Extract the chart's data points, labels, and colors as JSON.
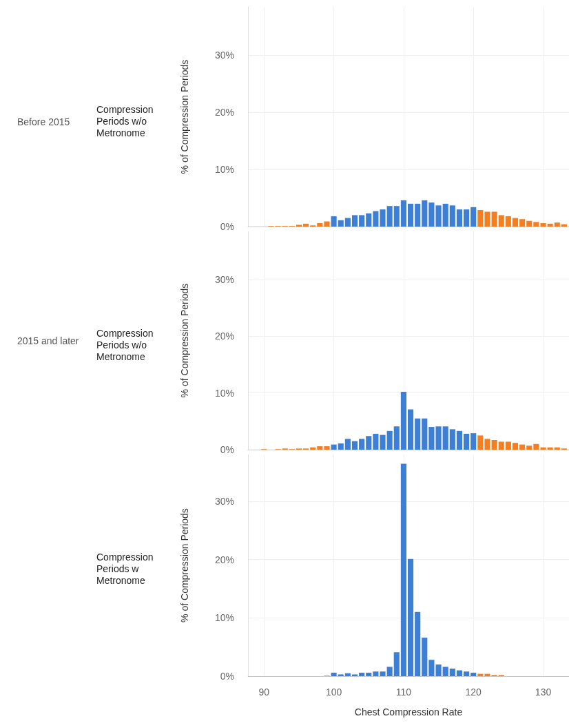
{
  "chart_data": [
    {
      "type": "histogram",
      "annotations": [
        "Before 2015",
        "Compression Periods w/o Metronome"
      ],
      "ylabel": "% of Compression Periods",
      "bins": [
        88.5,
        89.5,
        90.5,
        91.5,
        92.5,
        93.5,
        94.5,
        95.5,
        96.5,
        97.5,
        98.5,
        99.5,
        100.5,
        101.5,
        102.5,
        103.5,
        104.5,
        105.5,
        106.5,
        107.5,
        108.5,
        109.5,
        110.5,
        111.5,
        112.5,
        113.5,
        114.5,
        115.5,
        116.5,
        117.5,
        118.5,
        119.5,
        120.5,
        121.5,
        122.5,
        123.5,
        124.5,
        125.5,
        126.5,
        127.5,
        128.5,
        129.5,
        130.5,
        131.5,
        132.5,
        133.5
      ],
      "values": [
        0,
        0,
        0.1,
        0.1,
        0.1,
        0.1,
        0.3,
        0.5,
        0.2,
        0.6,
        0.9,
        1.8,
        1.1,
        1.5,
        2.0,
        2.0,
        2.3,
        2.7,
        3.0,
        3.6,
        3.6,
        4.6,
        4.0,
        4.0,
        4.6,
        4.2,
        3.7,
        4.0,
        3.7,
        3.0,
        3.0,
        3.4,
        2.9,
        2.6,
        2.6,
        2.0,
        1.8,
        1.5,
        1.3,
        1.0,
        0.8,
        0.6,
        0.5,
        0.7,
        0.4
      ],
      "colors": [
        "#f28023",
        "#f28023",
        "#f28023",
        "#f28023",
        "#f28023",
        "#f28023",
        "#f28023",
        "#f28023",
        "#f28023",
        "#f28023",
        "#f28023",
        "#3e7fd6",
        "#3e7fd6",
        "#3e7fd6",
        "#3e7fd6",
        "#3e7fd6",
        "#3e7fd6",
        "#3e7fd6",
        "#3e7fd6",
        "#3e7fd6",
        "#3e7fd6",
        "#3e7fd6",
        "#3e7fd6",
        "#3e7fd6",
        "#3e7fd6",
        "#3e7fd6",
        "#3e7fd6",
        "#3e7fd6",
        "#3e7fd6",
        "#3e7fd6",
        "#3e7fd6",
        "#3e7fd6",
        "#f28023",
        "#f28023",
        "#f28023",
        "#f28023",
        "#f28023",
        "#f28023",
        "#f28023",
        "#f28023",
        "#f28023",
        "#f28023",
        "#f28023",
        "#f28023",
        "#f28023"
      ],
      "xlim": [
        87.7,
        133.7
      ],
      "xticks": [
        90,
        100,
        110,
        120,
        130
      ],
      "ylim": [
        0,
        38.5
      ],
      "yticks": [
        {
          "value": 0,
          "label": "0%"
        },
        {
          "value": 10,
          "label": "10%"
        },
        {
          "value": 20,
          "label": "20%"
        },
        {
          "value": 30,
          "label": "30%"
        }
      ],
      "grid": true,
      "tick_labels": "y"
    },
    {
      "type": "histogram",
      "annotations": [
        "2015 and later",
        "Compression Periods w/o Metronome"
      ],
      "ylabel": "% of Compression Periods",
      "bins": [
        88.5,
        89.5,
        90.5,
        91.5,
        92.5,
        93.5,
        94.5,
        95.5,
        96.5,
        97.5,
        98.5,
        99.5,
        100.5,
        101.5,
        102.5,
        103.5,
        104.5,
        105.5,
        106.5,
        107.5,
        108.5,
        109.5,
        110.5,
        111.5,
        112.5,
        113.5,
        114.5,
        115.5,
        116.5,
        117.5,
        118.5,
        119.5,
        120.5,
        121.5,
        122.5,
        123.5,
        124.5,
        125.5,
        126.5,
        127.5,
        128.5,
        129.5,
        130.5,
        131.5,
        132.5,
        133.5
      ],
      "values": [
        0,
        0.1,
        0,
        0.1,
        0.2,
        0.1,
        0.2,
        0.2,
        0.4,
        0.6,
        0.6,
        0.9,
        1.1,
        1.9,
        1.5,
        1.9,
        2.4,
        2.8,
        2.6,
        3.3,
        4.1,
        10.2,
        7.1,
        5.5,
        5.5,
        4.0,
        4.1,
        4.1,
        3.6,
        3.3,
        2.8,
        2.9,
        2.5,
        1.9,
        1.7,
        1.4,
        1.4,
        1.2,
        0.9,
        0.7,
        1.0,
        0.4,
        0.4,
        0.4,
        0.2
      ],
      "colors": [
        "#f28023",
        "#f28023",
        "#f28023",
        "#f28023",
        "#f28023",
        "#f28023",
        "#f28023",
        "#f28023",
        "#f28023",
        "#f28023",
        "#f28023",
        "#3e7fd6",
        "#3e7fd6",
        "#3e7fd6",
        "#3e7fd6",
        "#3e7fd6",
        "#3e7fd6",
        "#3e7fd6",
        "#3e7fd6",
        "#3e7fd6",
        "#3e7fd6",
        "#3e7fd6",
        "#3e7fd6",
        "#3e7fd6",
        "#3e7fd6",
        "#3e7fd6",
        "#3e7fd6",
        "#3e7fd6",
        "#3e7fd6",
        "#3e7fd6",
        "#3e7fd6",
        "#3e7fd6",
        "#f28023",
        "#f28023",
        "#f28023",
        "#f28023",
        "#f28023",
        "#f28023",
        "#f28023",
        "#f28023",
        "#f28023",
        "#f28023",
        "#f28023",
        "#f28023",
        "#f28023"
      ],
      "xlim": [
        87.7,
        133.7
      ],
      "xticks": [
        90,
        100,
        110,
        120,
        130
      ],
      "ylim": [
        0,
        38.5
      ],
      "yticks": [
        {
          "value": 0,
          "label": "0%"
        },
        {
          "value": 10,
          "label": "10%"
        },
        {
          "value": 20,
          "label": "20%"
        },
        {
          "value": 30,
          "label": "30%"
        }
      ],
      "grid": true,
      "tick_labels": "y"
    },
    {
      "type": "histogram",
      "annotations": [
        "Compression Periods w Metronome"
      ],
      "ylabel": "% of Compression Periods",
      "xlabel": "Chest Compression Rate",
      "bins": [
        88.5,
        89.5,
        90.5,
        91.5,
        92.5,
        93.5,
        94.5,
        95.5,
        96.5,
        97.5,
        98.5,
        99.5,
        100.5,
        101.5,
        102.5,
        103.5,
        104.5,
        105.5,
        106.5,
        107.5,
        108.5,
        109.5,
        110.5,
        111.5,
        112.5,
        113.5,
        114.5,
        115.5,
        116.5,
        117.5,
        118.5,
        119.5,
        120.5,
        121.5,
        122.5,
        123.5,
        124.5,
        125.5,
        126.5,
        127.5,
        128.5,
        129.5,
        130.5,
        131.5,
        132.5,
        133.5
      ],
      "values": [
        0,
        0,
        0,
        0,
        0,
        0,
        0,
        0,
        0,
        0,
        0.1,
        0.6,
        0.3,
        0.5,
        0.3,
        0.6,
        0.6,
        0.8,
        0.8,
        1.6,
        4.1,
        36.4,
        20.1,
        11.0,
        6.6,
        2.8,
        2.0,
        1.6,
        1.3,
        1.0,
        0.8,
        0.6,
        0.4,
        0.4,
        0.2,
        0.2,
        0,
        0,
        0,
        0,
        0,
        0,
        0,
        0,
        0
      ],
      "colors": [
        "#f28023",
        "#f28023",
        "#f28023",
        "#f28023",
        "#f28023",
        "#f28023",
        "#f28023",
        "#f28023",
        "#f28023",
        "#f28023",
        "#f28023",
        "#3e7fd6",
        "#3e7fd6",
        "#3e7fd6",
        "#3e7fd6",
        "#3e7fd6",
        "#3e7fd6",
        "#3e7fd6",
        "#3e7fd6",
        "#3e7fd6",
        "#3e7fd6",
        "#3e7fd6",
        "#3e7fd6",
        "#3e7fd6",
        "#3e7fd6",
        "#3e7fd6",
        "#3e7fd6",
        "#3e7fd6",
        "#3e7fd6",
        "#3e7fd6",
        "#3e7fd6",
        "#3e7fd6",
        "#f28023",
        "#f28023",
        "#f28023",
        "#f28023",
        "#f28023",
        "#f28023",
        "#f28023",
        "#f28023",
        "#f28023",
        "#f28023",
        "#f28023",
        "#f28023",
        "#f28023"
      ],
      "xlim": [
        87.7,
        133.7
      ],
      "xticks": [
        90,
        100,
        110,
        120,
        130
      ],
      "ylim": [
        0,
        38
      ],
      "yticks": [
        {
          "value": 0,
          "label": "0%"
        },
        {
          "value": 10,
          "label": "10%"
        },
        {
          "value": 20,
          "label": "20%"
        },
        {
          "value": 30,
          "label": "30%"
        }
      ],
      "grid": true
    }
  ]
}
